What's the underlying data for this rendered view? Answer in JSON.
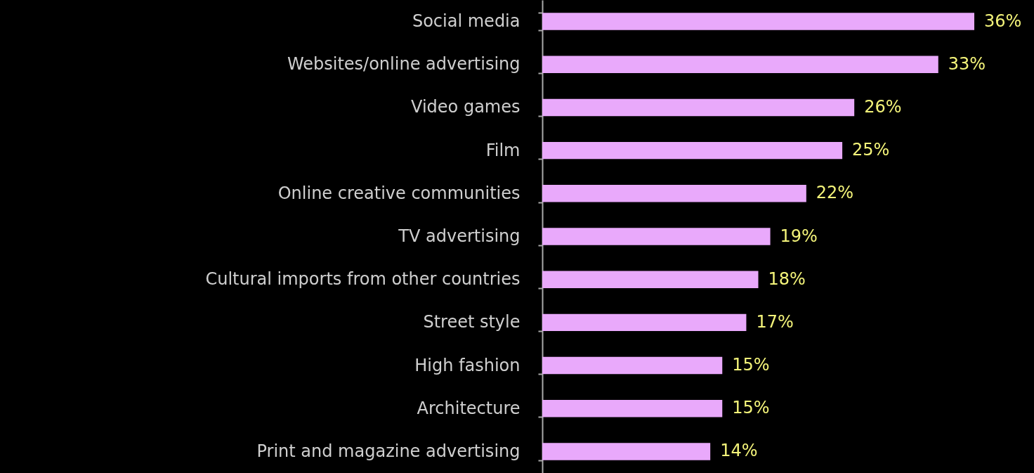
{
  "chart_data": {
    "type": "bar",
    "orientation": "horizontal",
    "tick_labels": "y",
    "categories": [
      "Social media",
      "Websites/online advertising",
      "Video games",
      "Film",
      "Online creative communities",
      "TV advertising",
      "Cultural imports from other countries",
      "Street style",
      "High fashion",
      "Architecture",
      "Print and magazine advertising"
    ],
    "values": [
      36,
      33,
      26,
      25,
      22,
      19,
      18,
      17,
      15,
      15,
      14
    ],
    "value_labels": [
      "36%",
      "33%",
      "26%",
      "25%",
      "22%",
      "19%",
      "18%",
      "17%",
      "15%",
      "15%",
      "14%"
    ],
    "color": "#e9a9fb"
  }
}
